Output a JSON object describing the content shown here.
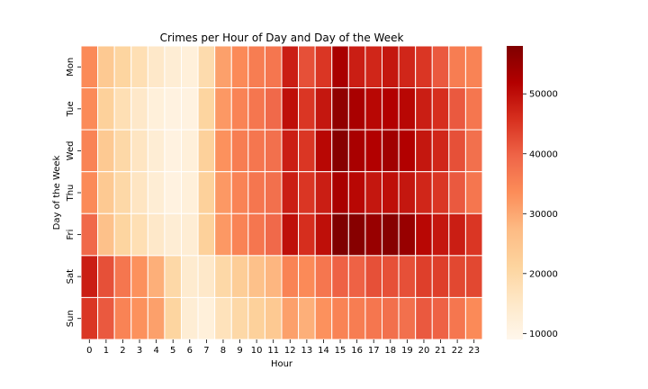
{
  "chart_data": {
    "type": "heatmap",
    "title": "Crimes per Hour of Day and Day of the Week",
    "xlabel": "Hour",
    "ylabel": "Day of the Week",
    "x_categories": [
      "0",
      "1",
      "2",
      "3",
      "4",
      "5",
      "6",
      "7",
      "8",
      "9",
      "10",
      "11",
      "12",
      "13",
      "14",
      "15",
      "16",
      "17",
      "18",
      "19",
      "20",
      "21",
      "22",
      "23"
    ],
    "y_categories": [
      "Mon",
      "Tue",
      "Wed",
      "Thu",
      "Fri",
      "Sat",
      "Sun"
    ],
    "values": [
      [
        34000,
        24000,
        21000,
        18000,
        15000,
        13000,
        12000,
        19000,
        31000,
        34000,
        36000,
        37000,
        48000,
        42000,
        45000,
        53000,
        48000,
        47000,
        49000,
        47000,
        45000,
        41000,
        36000,
        35000
      ],
      [
        34000,
        22000,
        18000,
        15000,
        12000,
        11000,
        11000,
        21000,
        32000,
        35000,
        37000,
        39000,
        50000,
        45000,
        49000,
        56000,
        53000,
        51000,
        52000,
        51000,
        48000,
        46000,
        41000,
        37000
      ],
      [
        35000,
        24000,
        20000,
        16000,
        13000,
        11000,
        12000,
        22000,
        33000,
        36000,
        37000,
        38000,
        48000,
        45000,
        51000,
        57000,
        53000,
        52000,
        54000,
        52000,
        49000,
        47000,
        42000,
        38000
      ],
      [
        34000,
        24000,
        20000,
        16000,
        13000,
        11000,
        12000,
        22000,
        32000,
        35000,
        37000,
        38000,
        48000,
        45000,
        48000,
        53000,
        51000,
        49000,
        50000,
        49000,
        47000,
        45000,
        41000,
        37000
      ],
      [
        39000,
        26000,
        21000,
        18000,
        15000,
        13000,
        13000,
        22000,
        32000,
        35000,
        37000,
        39000,
        50000,
        46000,
        50000,
        58000,
        57000,
        55000,
        57000,
        55000,
        51000,
        49000,
        48000,
        45000
      ],
      [
        48000,
        42000,
        37000,
        33000,
        29000,
        20000,
        14000,
        15000,
        20000,
        23000,
        26000,
        28000,
        35000,
        34000,
        37000,
        40000,
        40000,
        42000,
        42000,
        42000,
        44000,
        44000,
        43000,
        43000
      ],
      [
        45000,
        41000,
        35000,
        33000,
        31000,
        21000,
        13000,
        12000,
        17000,
        20000,
        22000,
        24000,
        31000,
        29000,
        33000,
        35000,
        36000,
        37000,
        38000,
        38000,
        41000,
        40000,
        37000,
        34000
      ]
    ],
    "colormap": "OrRd",
    "vmin": 9000,
    "vmax": 58000,
    "colorbar_ticks": [
      "10000",
      "20000",
      "30000",
      "40000",
      "50000"
    ],
    "colorbar_tick_values": [
      10000,
      20000,
      30000,
      40000,
      50000
    ],
    "grid_line_color": "#ffffff"
  }
}
